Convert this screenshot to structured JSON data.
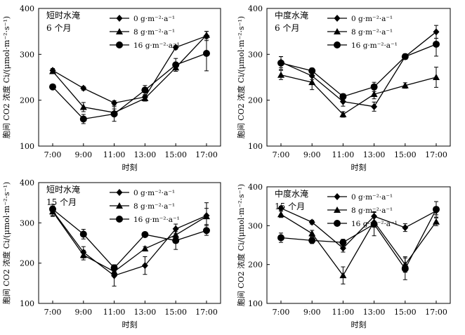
{
  "chart_data": [
    {
      "type": "line",
      "annotation": [
        "短时水淹",
        "6 个月"
      ],
      "xlabel": "时刻",
      "ylabel": "胞间 CO2 浓度 Ci/(μmol·m⁻²·s⁻¹)",
      "categories": [
        "7:00",
        "9:00",
        "11:00",
        "13:00",
        "15:00",
        "17:00"
      ],
      "ylim": [
        100,
        400
      ],
      "yticks": [
        100,
        200,
        300,
        400
      ],
      "legend_position": "top-right",
      "series": [
        {
          "name": "0 g·m⁻²·a⁻¹",
          "marker": "diamond",
          "values": [
            265,
            226,
            194,
            207,
            315,
            340
          ],
          "errors": [
            4,
            4,
            5,
            5,
            4,
            10
          ]
        },
        {
          "name": "8 g·m⁻²·a⁻¹",
          "marker": "triangle",
          "values": [
            263,
            185,
            173,
            204,
            271,
            342
          ],
          "errors": [
            4,
            10,
            8,
            6,
            8,
            8
          ]
        },
        {
          "name": "16 g·m⁻²·a⁻¹",
          "marker": "circle",
          "values": [
            229,
            159,
            170,
            222,
            277,
            302
          ],
          "errors": [
            4,
            10,
            16,
            10,
            14,
            38
          ]
        }
      ]
    },
    {
      "type": "line",
      "annotation": [
        "中度水淹",
        "6 个月"
      ],
      "xlabel": "时刻",
      "ylabel": "胞间 CO2 浓度 Ci/(μmol·m⁻²·s⁻¹)",
      "categories": [
        "7:00",
        "9:00",
        "11:00",
        "13:00",
        "15:00",
        "17:00"
      ],
      "ylim": [
        100,
        400
      ],
      "yticks": [
        100,
        200,
        300,
        400
      ],
      "legend_position": "top-right",
      "series": [
        {
          "name": "0 g·m⁻²·a⁻¹",
          "marker": "diamond",
          "values": [
            283,
            253,
            197,
            186,
            295,
            349
          ],
          "errors": [
            12,
            8,
            10,
            10,
            5,
            14
          ]
        },
        {
          "name": "8 g·m⁻²·a⁻¹",
          "marker": "triangle",
          "values": [
            255,
            239,
            169,
            213,
            232,
            250
          ],
          "errors": [
            10,
            16,
            6,
            10,
            6,
            22
          ]
        },
        {
          "name": "16 g·m⁻²·a⁻¹",
          "marker": "circle",
          "values": [
            281,
            264,
            208,
            229,
            295,
            322
          ],
          "errors": [
            14,
            6,
            6,
            10,
            6,
            26
          ]
        }
      ]
    },
    {
      "type": "line",
      "annotation": [
        "短时水淹",
        "15 个月"
      ],
      "xlabel": "时刻",
      "ylabel": "胞间 CO2 浓度 Ci/(μmol·m⁻²·s⁻¹)",
      "categories": [
        "7:00",
        "9:00",
        "11:00",
        "13:00",
        "15:00",
        "17:00"
      ],
      "ylim": [
        100,
        400
      ],
      "yticks": [
        100,
        200,
        300,
        400
      ],
      "legend_position": "top-right",
      "series": [
        {
          "name": "0 g·m⁻²·a⁻¹",
          "marker": "diamond",
          "values": [
            330,
            227,
            169,
            194,
            285,
            318
          ],
          "errors": [
            12,
            14,
            26,
            22,
            12,
            32
          ]
        },
        {
          "name": "8 g·m⁻²·a⁻¹",
          "marker": "triangle",
          "values": [
            328,
            220,
            179,
            236,
            270,
            316
          ],
          "errors": [
            12,
            12,
            10,
            5,
            14,
            20
          ]
        },
        {
          "name": "16 g·m⁻²·a⁻¹",
          "marker": "circle",
          "values": [
            334,
            272,
            188,
            271,
            256,
            281
          ],
          "errors": [
            12,
            12,
            8,
            5,
            22,
            12
          ]
        }
      ]
    },
    {
      "type": "line",
      "annotation": [
        "中度水淹",
        "15 个月"
      ],
      "xlabel": "时刻",
      "ylabel": "胞间 CO2 浓度 Ci/(μmol·m⁻²·s⁻¹)",
      "categories": [
        "7:00",
        "9:00",
        "11:00",
        "13:00",
        "15:00",
        "17:00"
      ],
      "ylim": [
        100,
        400
      ],
      "yticks": [
        100,
        200,
        300,
        400
      ],
      "legend_position": "top-right",
      "series": [
        {
          "name": "0 g·m⁻²·a⁻¹",
          "marker": "diamond",
          "values": [
            345,
            309,
            242,
            324,
            295,
            338
          ],
          "errors": [
            5,
            5,
            10,
            12,
            10,
            10
          ]
        },
        {
          "name": "8 g·m⁻²·a⁻¹",
          "marker": "triangle",
          "values": [
            329,
            280,
            172,
            310,
            200,
            310
          ],
          "errors": [
            8,
            8,
            22,
            14,
            20,
            10
          ]
        },
        {
          "name": "16 g·m⁻²·a⁻¹",
          "marker": "circle",
          "values": [
            269,
            262,
            257,
            304,
            189,
            342
          ],
          "errors": [
            12,
            8,
            8,
            30,
            28,
            20
          ]
        }
      ]
    }
  ]
}
